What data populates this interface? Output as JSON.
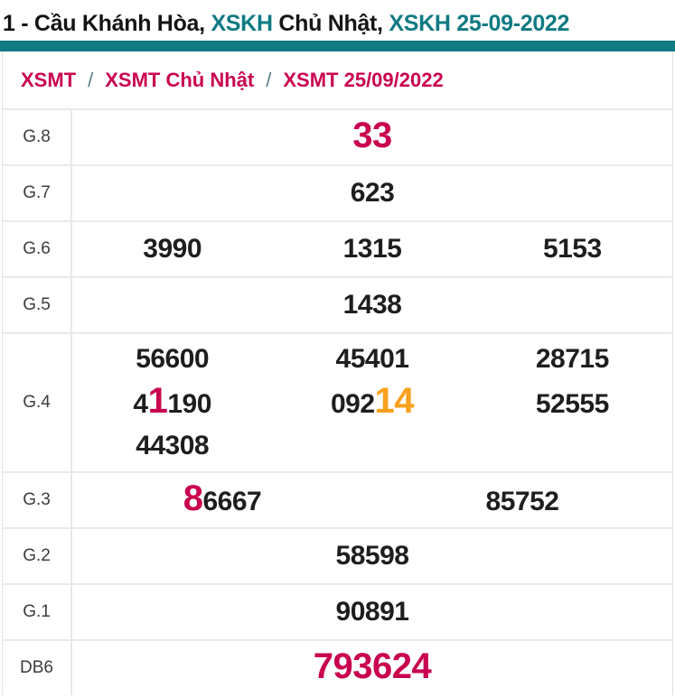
{
  "title": {
    "segments": [
      {
        "text": "1 - Cầu Khánh Hòa, ",
        "color": "dark",
        "link": false
      },
      {
        "text": "XSKH",
        "color": "teal",
        "link": true
      },
      {
        "text": " Chủ Nhật, ",
        "color": "dark",
        "link": false
      },
      {
        "text": "XSKH 25-09-2022",
        "color": "teal",
        "link": true
      }
    ]
  },
  "breadcrumb": {
    "separator": "/",
    "items": [
      {
        "label": "XSMT"
      },
      {
        "label": "XSMT Chủ Nhật"
      },
      {
        "label": "XSMT 25/09/2022"
      }
    ]
  },
  "colors": {
    "teal_accent": "#107a83",
    "highlight_red": "#c9024f",
    "highlight_orange": "#f9a11c",
    "value_black": "#1e1e1e"
  },
  "results_table": {
    "rows": [
      {
        "label": "G.8",
        "lines": [
          [
            {
              "segments": [
                {
                  "text": "33",
                  "color": "red",
                  "size": "lg"
                }
              ]
            }
          ]
        ]
      },
      {
        "label": "G.7",
        "lines": [
          [
            {
              "segments": [
                {
                  "text": "623"
                }
              ]
            }
          ]
        ]
      },
      {
        "label": "G.6",
        "lines": [
          [
            {
              "segments": [
                {
                  "text": "3990"
                }
              ]
            },
            {
              "segments": [
                {
                  "text": "1315"
                }
              ]
            },
            {
              "segments": [
                {
                  "text": "5153"
                }
              ]
            }
          ]
        ]
      },
      {
        "label": "G.5",
        "lines": [
          [
            {
              "segments": [
                {
                  "text": "1438"
                }
              ]
            }
          ]
        ]
      },
      {
        "label": "G.4",
        "lines": [
          [
            {
              "segments": [
                {
                  "text": "56600"
                }
              ]
            },
            {
              "segments": [
                {
                  "text": "45401"
                }
              ]
            },
            {
              "segments": [
                {
                  "text": "28715"
                }
              ]
            }
          ],
          [
            {
              "segments": [
                {
                  "text": "4"
                },
                {
                  "text": "1",
                  "color": "red",
                  "size": "lg"
                },
                {
                  "text": "190"
                }
              ]
            },
            {
              "segments": [
                {
                  "text": "092"
                },
                {
                  "text": "14",
                  "color": "orange",
                  "size": "lg"
                }
              ]
            },
            {
              "segments": [
                {
                  "text": "52555"
                }
              ]
            }
          ],
          [
            {
              "segments": [
                {
                  "text": "44308"
                }
              ]
            },
            {
              "segments": []
            },
            {
              "segments": []
            }
          ]
        ]
      },
      {
        "label": "G.3",
        "lines": [
          [
            {
              "segments": [
                {
                  "text": "8",
                  "color": "red",
                  "size": "lg"
                },
                {
                  "text": "6667"
                }
              ]
            },
            {
              "segments": [
                {
                  "text": "85752"
                }
              ]
            }
          ]
        ]
      },
      {
        "label": "G.2",
        "lines": [
          [
            {
              "segments": [
                {
                  "text": "58598"
                }
              ]
            }
          ]
        ]
      },
      {
        "label": "G.1",
        "lines": [
          [
            {
              "segments": [
                {
                  "text": "90891"
                }
              ]
            }
          ]
        ]
      },
      {
        "label": "DB6",
        "lines": [
          [
            {
              "segments": [
                {
                  "text": "793624",
                  "color": "red",
                  "size": "lg"
                }
              ]
            }
          ]
        ]
      }
    ]
  }
}
